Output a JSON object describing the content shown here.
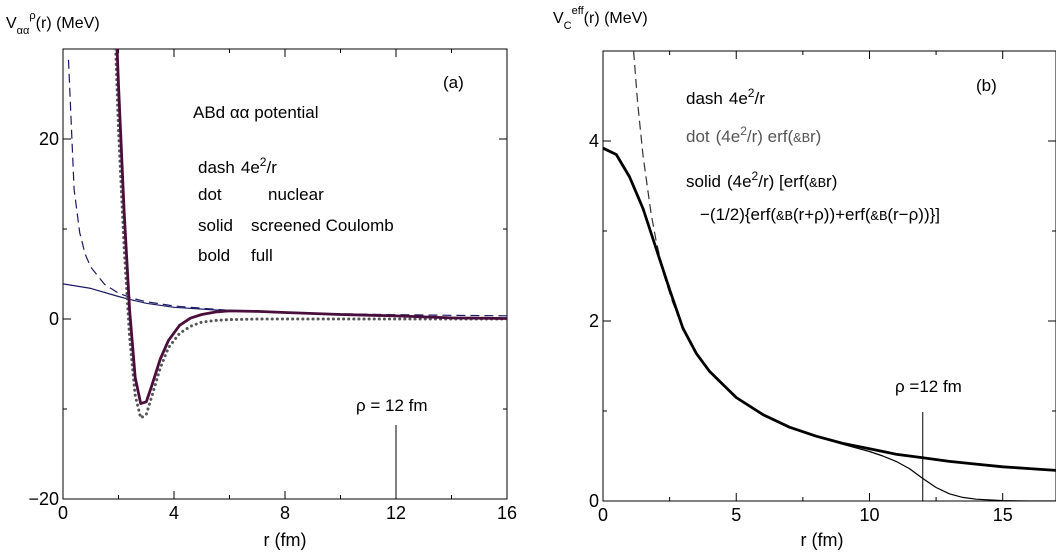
{
  "chart_data": [
    {
      "id": "a",
      "type": "line",
      "ylabel": {
        "base": "V",
        "sub": "αα",
        "sup": "ρ",
        "tail": "(r) (MeV)"
      },
      "xlabel": "r (fm)",
      "panel_label": "(a)",
      "xlim": [
        0,
        16
      ],
      "ylim": [
        -20,
        30
      ],
      "xticks": [
        0,
        4,
        8,
        12,
        16
      ],
      "yticks": [
        -20,
        0,
        20
      ],
      "xtick_labels": [
        "0",
        "4",
        "8",
        "12",
        "16"
      ],
      "ytick_labels": [
        "−20",
        "0",
        "20"
      ],
      "grid": false,
      "legend": "none",
      "annotations": {
        "title": "ABd αα potential",
        "dash": {
          "key": "dash",
          "text": "4e",
          "sup": "2",
          "tail": "/r"
        },
        "dot": {
          "key": "dot",
          "text": "nuclear"
        },
        "solid": {
          "key": "solid",
          "text": "screened Coulomb"
        },
        "bold": {
          "key": "bold",
          "text": "full"
        },
        "rho": "ρ = 12 fm"
      },
      "marker_x": 12,
      "series": [
        {
          "style": "dashed",
          "color": "#1a1a66",
          "x": [
            0.2,
            0.4,
            0.6,
            0.8,
            1.0,
            1.5,
            2.0,
            2.5,
            3,
            4,
            6,
            8,
            10,
            12,
            14,
            16
          ],
          "y": [
            28.8,
            14.4,
            9.6,
            7.2,
            5.76,
            3.84,
            2.88,
            2.3,
            1.92,
            1.44,
            0.96,
            0.72,
            0.58,
            0.48,
            0.41,
            0.36
          ]
        },
        {
          "style": "solid",
          "color": "#1a1a66",
          "x": [
            0,
            1,
            2,
            2.5,
            3,
            4,
            6,
            8,
            10,
            12,
            13,
            14,
            16
          ],
          "y": [
            3.9,
            3.4,
            2.5,
            2.1,
            1.75,
            1.3,
            0.9,
            0.68,
            0.5,
            0.35,
            0.22,
            0.12,
            0.05
          ]
        },
        {
          "style": "dotted",
          "color": "#555555",
          "x": [
            1.9,
            2.0,
            2.2,
            2.4,
            2.6,
            2.8,
            3.0,
            3.2,
            3.5,
            3.8,
            4.2,
            4.6,
            5.0,
            5.5,
            6,
            7,
            8,
            10,
            12,
            14,
            16
          ],
          "y": [
            30,
            21,
            8,
            -2,
            -8.5,
            -11,
            -10.6,
            -8.6,
            -5.5,
            -3.2,
            -1.6,
            -0.8,
            -0.35,
            -0.15,
            -0.07,
            0,
            0,
            0,
            0,
            0,
            0
          ]
        },
        {
          "style": "bold",
          "color": "#4a0e3c",
          "x": [
            1.95,
            2.0,
            2.2,
            2.4,
            2.6,
            2.8,
            3.0,
            3.2,
            3.5,
            3.8,
            4.2,
            4.6,
            5.0,
            5.5,
            6,
            7,
            8,
            10,
            12,
            14,
            16
          ],
          "y": [
            30,
            26,
            12,
            1,
            -6.5,
            -9.4,
            -9.2,
            -7.4,
            -4.5,
            -2.4,
            -0.7,
            0.1,
            0.5,
            0.78,
            0.9,
            0.85,
            0.72,
            0.5,
            0.35,
            0.12,
            0.05
          ]
        }
      ]
    },
    {
      "id": "b",
      "type": "line",
      "ylabel": {
        "base": "V",
        "sub": "C",
        "sup": "eff",
        "tail": "(r) (MeV)"
      },
      "xlabel": "r (fm)",
      "panel_label": "(b)",
      "xlim": [
        0,
        17
      ],
      "ylim": [
        0,
        5
      ],
      "xticks": [
        0,
        5,
        10,
        15
      ],
      "yticks": [
        0,
        2,
        4
      ],
      "xtick_labels": [
        "0",
        "5",
        "10",
        "15"
      ],
      "ytick_labels": [
        "0",
        "2",
        "4"
      ],
      "grid": false,
      "legend": "none",
      "annotations": {
        "dash": {
          "key": "dash",
          "text": "4e",
          "sup": "2",
          "tail": "/r"
        },
        "dot": {
          "key": "dot",
          "pre": "(4e",
          "sup": "2",
          "mid": "/r) erf(",
          "code": "&B",
          "post": "r)"
        },
        "solid1": {
          "key": "solid",
          "pre": "(4e",
          "sup": "2",
          "mid": "/r) [erf(",
          "code": "&B",
          "post": "r)"
        },
        "solid2": {
          "pre": "−(1/2){erf(",
          "code1": "&B",
          "mid": "(r+ρ))+erf(",
          "code2": "&B",
          "post": "(r−ρ))}]"
        },
        "rho": "ρ =12 fm"
      },
      "marker_x": 12,
      "series": [
        {
          "style": "dashed",
          "color": "#333333",
          "x": [
            1.15,
            1.3,
            1.5,
            1.8,
            2.0,
            2.3,
            2.6,
            3.0,
            3.5
          ],
          "y": [
            5.0,
            4.43,
            3.84,
            3.2,
            2.88,
            2.5,
            2.22,
            1.92,
            1.65
          ]
        },
        {
          "style": "bold",
          "color": "#000000",
          "x": [
            0,
            0.5,
            1,
            1.5,
            2,
            2.5,
            3,
            3.5,
            4,
            5,
            6,
            7,
            8,
            9,
            10,
            11,
            12,
            13,
            14,
            15,
            16,
            17
          ],
          "y": [
            3.92,
            3.85,
            3.6,
            3.25,
            2.8,
            2.35,
            1.92,
            1.64,
            1.44,
            1.15,
            0.96,
            0.82,
            0.72,
            0.64,
            0.58,
            0.52,
            0.48,
            0.44,
            0.41,
            0.38,
            0.36,
            0.34
          ]
        },
        {
          "style": "solid",
          "color": "#000000",
          "x": [
            0,
            0.5,
            1,
            1.5,
            2,
            2.5,
            3,
            3.5,
            4,
            5,
            6,
            7,
            8,
            9,
            10,
            10.5,
            11,
            11.5,
            12,
            12.5,
            13,
            13.5,
            14,
            15,
            16,
            17
          ],
          "y": [
            3.92,
            3.85,
            3.6,
            3.25,
            2.8,
            2.35,
            1.92,
            1.64,
            1.44,
            1.15,
            0.96,
            0.82,
            0.72,
            0.63,
            0.55,
            0.5,
            0.44,
            0.36,
            0.25,
            0.15,
            0.08,
            0.04,
            0.02,
            0.005,
            0.0,
            0.0
          ]
        }
      ]
    }
  ]
}
